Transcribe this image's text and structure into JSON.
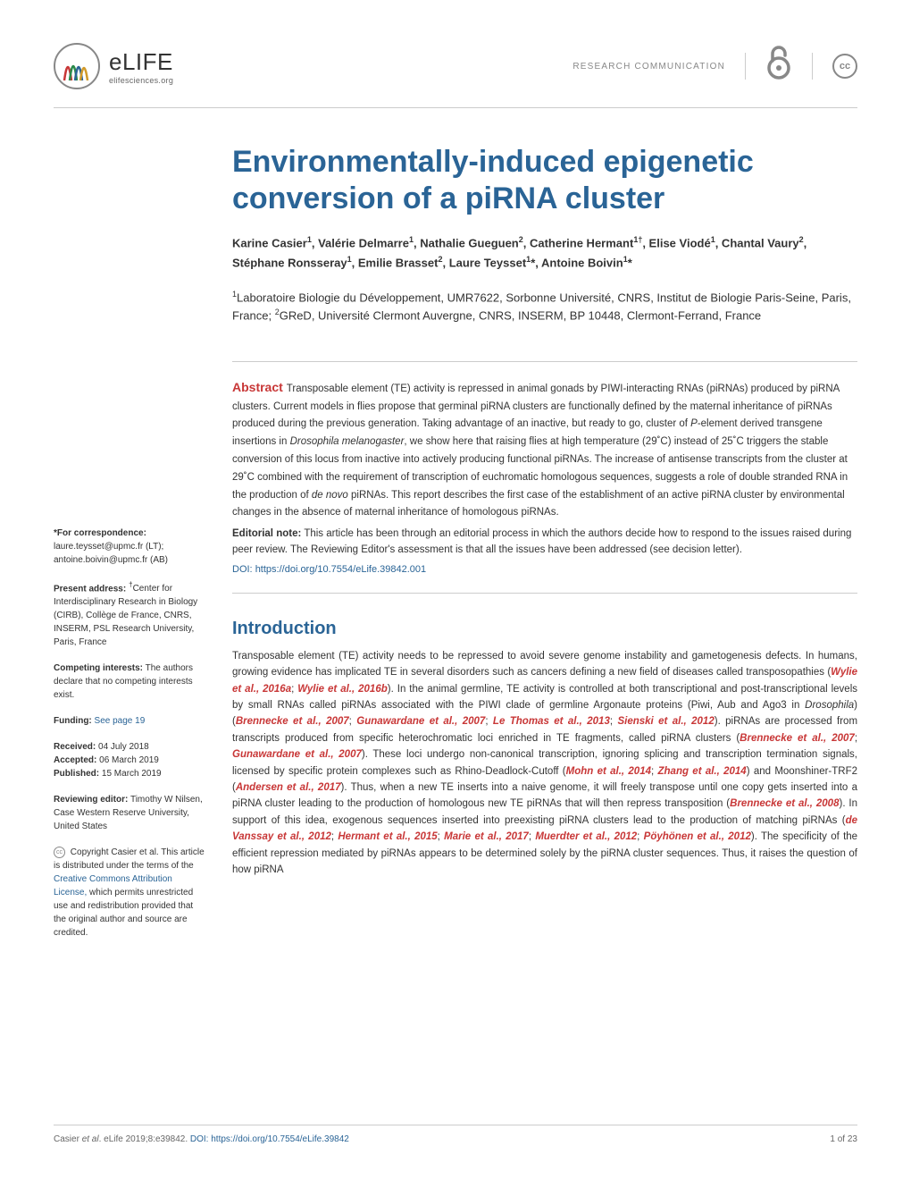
{
  "header": {
    "journal_name": "eLIFE",
    "journal_url": "elifesciences.org",
    "section_type": "RESEARCH COMMUNICATION",
    "oa_symbol": "∂",
    "cc_label": "cc"
  },
  "article": {
    "title": "Environmentally-induced epigenetic conversion of a piRNA cluster",
    "authors_html": "Karine Casier<sup>1</sup>, Valérie Delmarre<sup>1</sup>, Nathalie Gueguen<sup>2</sup>, Catherine Hermant<sup>1†</sup>, Elise Viodé<sup>1</sup>, Chantal Vaury<sup>2</sup>, Stéphane Ronsseray<sup>1</sup>, Emilie Brasset<sup>2</sup>, Laure Teysset<sup>1</sup>*, Antoine Boivin<sup>1</sup>*",
    "affiliations_html": "<sup>1</sup>Laboratoire Biologie du Développement, UMR7622, Sorbonne Université, CNRS, Institut de Biologie Paris-Seine, Paris, France; <sup>2</sup>GReD, Université Clermont Auvergne, CNRS, INSERM, BP 10448, Clermont-Ferrand, France",
    "abstract_label": "Abstract",
    "abstract_text": "Transposable element (TE) activity is repressed in animal gonads by PIWI-interacting RNAs (piRNAs) produced by piRNA clusters. Current models in flies propose that germinal piRNA clusters are functionally defined by the maternal inheritance of piRNAs produced during the previous generation. Taking advantage of an inactive, but ready to go, cluster of <em>P</em>-element derived transgene insertions in <em>Drosophila melanogaster</em>, we show here that raising flies at high temperature (29˚C) instead of 25˚C triggers the stable conversion of this locus from inactive into actively producing functional piRNAs. The increase of antisense transcripts from the cluster at 29˚C combined with the requirement of transcription of euchromatic homologous sequences, suggests a role of double stranded RNA in the production of <em>de novo</em> piRNAs. This report describes the first case of the establishment of an active piRNA cluster by environmental changes in the absence of maternal inheritance of homologous piRNAs.",
    "editorial_note_label": "Editorial note:",
    "editorial_note": "This article has been through an editorial process in which the authors decide how to respond to the issues raised during peer review. The Reviewing Editor's assessment is that all the issues have been addressed (see decision letter).",
    "doi_label": "DOI:",
    "doi_url": "https://doi.org/10.7554/eLife.39842.001",
    "intro_heading": "Introduction",
    "intro_text_parts": [
      "Transposable element (TE) activity needs to be repressed to avoid severe genome instability and gametogenesis defects. In humans, growing evidence has implicated TE in several disorders such as cancers defining a new field of diseases called transposopathies (",
      "Wylie et al., 2016a",
      "; ",
      "Wylie et al., 2016b",
      "). In the animal germline, TE activity is controlled at both transcriptional and post-transcriptional levels by small RNAs called piRNAs associated with the PIWI clade of germline Argonaute proteins (Piwi, Aub and Ago3 in <em>Drosophila</em>) (",
      "Brennecke et al., 2007",
      "; ",
      "Gunawardane et al., 2007",
      "; ",
      "Le Thomas et al., 2013",
      "; ",
      "Sienski et al., 2012",
      "). piRNAs are processed from transcripts produced from specific heterochromatic loci enriched in TE fragments, called piRNA clusters (",
      "Brennecke et al., 2007",
      "; ",
      "Gunawardane et al., 2007",
      "). These loci undergo non-canonical transcription, ignoring splicing and transcription termination signals, licensed by specific protein complexes such as Rhino-Deadlock-Cutoff (",
      "Mohn et al., 2014",
      "; ",
      "Zhang et al., 2014",
      ") and Moonshiner-TRF2 (",
      "Andersen et al., 2017",
      "). Thus, when a new TE inserts into a naive genome, it will freely transpose until one copy gets inserted into a piRNA cluster leading to the production of homologous new TE piRNAs that will then repress transposition (",
      "Brennecke et al., 2008",
      "). In support of this idea, exogenous sequences inserted into preexisting piRNA clusters lead to the production of matching piRNAs (",
      "de Vanssay et al., 2012",
      "; ",
      "Hermant et al., 2015",
      "; ",
      "Marie et al., 2017",
      "; ",
      "Muerdter et al., 2012",
      "; ",
      "Pöyhönen et al., 2012",
      "). The specificity of the efficient repression mediated by piRNAs appears to be determined solely by the piRNA cluster sequences. Thus, it raises the question of how piRNA"
    ]
  },
  "sidebar": {
    "correspondence_label": "*For correspondence:",
    "correspondence_emails": "laure.teysset@upmc.fr (LT); antoine.boivin@upmc.fr (AB)",
    "present_address_label": "Present address:",
    "present_address": "<sup>†</sup>Center for Interdisciplinary Research in Biology (CIRB), Collège de France, CNRS, INSERM, PSL Research University, Paris, France",
    "competing_label": "Competing interests:",
    "competing_text": "The authors declare that no competing interests exist.",
    "funding_label": "Funding:",
    "funding_link": "See page 19",
    "received_label": "Received:",
    "received_date": "04 July 2018",
    "accepted_label": "Accepted:",
    "accepted_date": "06 March 2019",
    "published_label": "Published:",
    "published_date": "15 March 2019",
    "reviewing_editor_label": "Reviewing editor:",
    "reviewing_editor": "Timothy W Nilsen, Case Western Reserve University, United States",
    "copyright_text": "Copyright Casier et al. This article is distributed under the terms of the ",
    "license_link": "Creative Commons Attribution License,",
    "license_suffix": " which permits unrestricted use and redistribution provided that the original author and source are credited."
  },
  "footer": {
    "citation": "Casier <em>et al</em>. eLife 2019;8:e39842. ",
    "doi_label": "DOI:",
    "doi_url": "https://doi.org/10.7554/eLife.39842",
    "page_number": "1 of 23"
  },
  "colors": {
    "primary_blue": "#2a6496",
    "accent_red": "#c83737",
    "text_gray": "#333333",
    "light_gray": "#888888",
    "border_gray": "#cccccc"
  },
  "typography": {
    "title_fontsize": 34,
    "authors_fontsize": 13,
    "body_fontsize": 11.5,
    "sidebar_fontsize": 10,
    "intro_heading_fontsize": 20
  }
}
